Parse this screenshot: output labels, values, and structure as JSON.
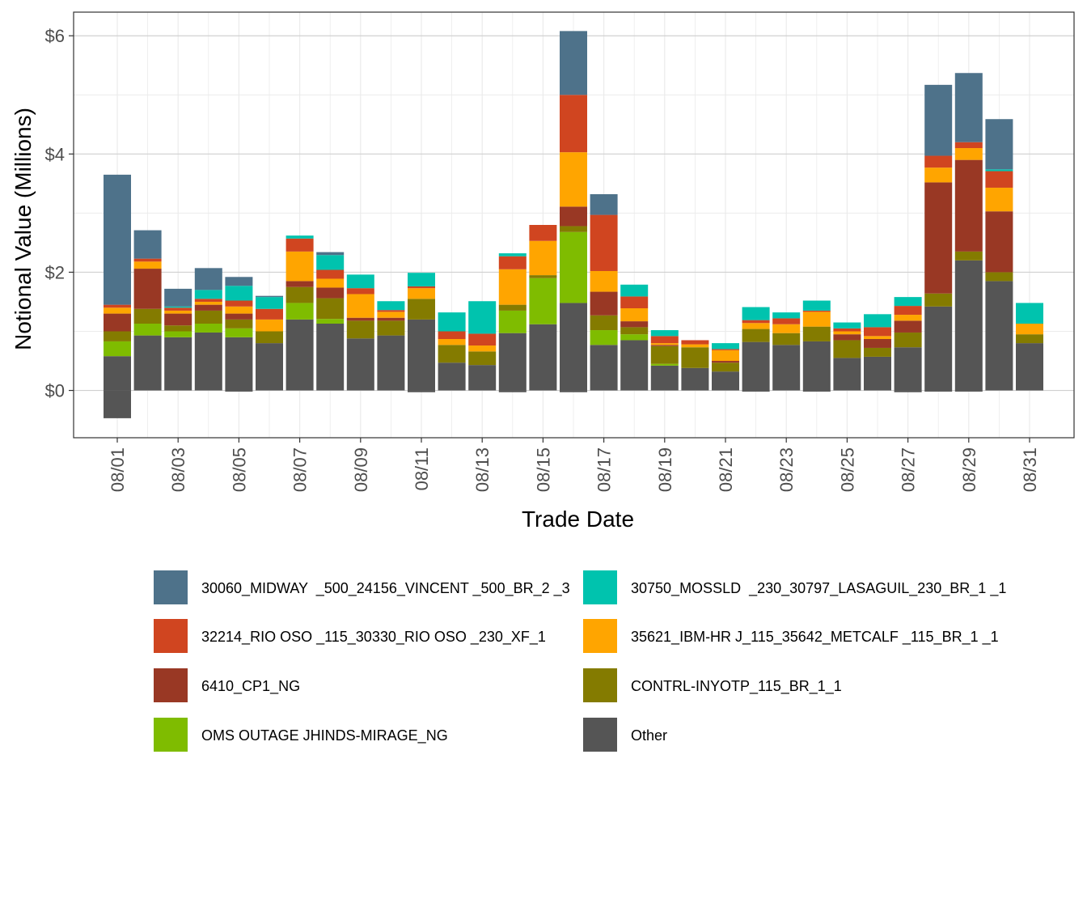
{
  "chart_data": {
    "type": "bar",
    "stacked": true,
    "xlabel": "Trade Date",
    "ylabel": "Notional Value (Millions)",
    "ylim": [
      -0.8,
      6.4
    ],
    "y_ticks": [
      0,
      2,
      4,
      6
    ],
    "y_tick_labels": [
      "$0",
      "$2",
      "$4",
      "$6"
    ],
    "x_tick_labels": [
      "08/01",
      "08/03",
      "08/05",
      "08/07",
      "08/09",
      "08/11",
      "08/13",
      "08/15",
      "08/17",
      "08/19",
      "08/21",
      "08/23",
      "08/25",
      "08/27",
      "08/29",
      "08/31"
    ],
    "grid": true,
    "legend_position": "bottom",
    "categories": [
      "08/01",
      "08/02",
      "08/03",
      "08/04",
      "08/05",
      "08/06",
      "08/07",
      "08/08",
      "08/09",
      "08/10",
      "08/11",
      "08/12",
      "08/13",
      "08/14",
      "08/15",
      "08/16",
      "08/17",
      "08/18",
      "08/19",
      "08/20",
      "08/21",
      "08/22",
      "08/23",
      "08/24",
      "08/25",
      "08/26",
      "08/27",
      "08/28",
      "08/29",
      "08/30",
      "08/31"
    ],
    "series": [
      {
        "name": "Other",
        "color": "#555555",
        "values": [
          0.58,
          0.93,
          0.9,
          0.98,
          0.9,
          0.8,
          1.2,
          1.13,
          0.88,
          0.93,
          1.2,
          0.47,
          0.43,
          0.97,
          1.12,
          1.48,
          0.77,
          0.85,
          0.42,
          0.38,
          0.32,
          0.82,
          0.77,
          0.83,
          0.55,
          0.57,
          0.73,
          1.42,
          2.2,
          1.85,
          0.8
        ],
        "negative": [
          -0.47,
          0,
          0,
          0,
          -0.02,
          0,
          0,
          0,
          0,
          0,
          -0.03,
          0,
          0,
          -0.03,
          0,
          -0.03,
          0,
          0,
          0,
          0,
          0,
          -0.02,
          0,
          -0.02,
          0,
          0,
          -0.03,
          -0.02,
          -0.02,
          0,
          0
        ]
      },
      {
        "name": "OMS OUTAGE JHINDS-MIRAGE_NG",
        "color": "#7fbc00",
        "values": [
          0.25,
          0.2,
          0.1,
          0.15,
          0.15,
          0,
          0.28,
          0.08,
          0,
          0,
          0,
          0,
          0,
          0.38,
          0.78,
          1.2,
          0.25,
          0.1,
          0.03,
          0,
          0,
          0,
          0,
          0,
          0,
          0,
          0,
          0,
          0,
          0,
          0
        ]
      },
      {
        "name": "CONTRL-INYOTP_115_BR_1_1",
        "color": "#847b00",
        "values": [
          0.17,
          0.25,
          0.1,
          0.22,
          0.15,
          0.2,
          0.27,
          0.35,
          0.3,
          0.25,
          0.35,
          0.3,
          0.23,
          0.1,
          0.05,
          0.1,
          0.25,
          0.12,
          0.3,
          0.35,
          0.15,
          0.22,
          0.2,
          0.25,
          0.3,
          0.15,
          0.25,
          0.22,
          0.15,
          0.15,
          0.15
        ]
      },
      {
        "name": "6410_CP1_NG",
        "color": "#993824",
        "values": [
          0.3,
          0.68,
          0.2,
          0.1,
          0.1,
          0,
          0.1,
          0.18,
          0.05,
          0.05,
          0,
          0,
          0,
          0,
          0,
          0.33,
          0.4,
          0.1,
          0.02,
          0,
          0.03,
          0,
          0,
          0,
          0.1,
          0.15,
          0.2,
          1.88,
          1.55,
          1.03,
          0
        ]
      },
      {
        "name": "35621_IBM-HR J_115_35642_METCALF _115_BR_1 _1",
        "color": "#ffa500",
        "values": [
          0.1,
          0.12,
          0.05,
          0.05,
          0.12,
          0.2,
          0.5,
          0.15,
          0.4,
          0.1,
          0.18,
          0.1,
          0.1,
          0.6,
          0.58,
          0.92,
          0.35,
          0.22,
          0.03,
          0.05,
          0.18,
          0.1,
          0.15,
          0.25,
          0.05,
          0.05,
          0.1,
          0.25,
          0.2,
          0.4,
          0.18
        ]
      },
      {
        "name": "32214_RIO OSO _115_30330_RIO OSO _230_XF_1",
        "color": "#d04520",
        "values": [
          0.05,
          0.05,
          0.05,
          0.05,
          0.1,
          0.18,
          0.22,
          0.15,
          0.1,
          0.03,
          0.03,
          0.13,
          0.2,
          0.22,
          0.27,
          0.97,
          0.95,
          0.2,
          0.12,
          0.07,
          0.02,
          0.05,
          0.1,
          0.02,
          0.05,
          0.15,
          0.15,
          0.2,
          0.1,
          0.28,
          0
        ]
      },
      {
        "name": "30750_MOSSLD  _230_30797_LASAGUIL_230_BR_1 _1",
        "color": "#00c3ae",
        "values": [
          0,
          0,
          0.02,
          0.15,
          0.25,
          0.2,
          0.05,
          0.25,
          0.23,
          0.15,
          0.23,
          0.32,
          0.55,
          0.05,
          0,
          0,
          0,
          0.2,
          0.1,
          0,
          0.1,
          0.22,
          0.1,
          0.17,
          0.1,
          0.22,
          0.15,
          0,
          0,
          0.03,
          0.35
        ]
      },
      {
        "name": "30060_MIDWAY  _500_24156_VINCENT _500_BR_2 _3",
        "color": "#4e728a",
        "values": [
          2.2,
          0.48,
          0.3,
          0.37,
          0.15,
          0.02,
          0,
          0.05,
          0,
          0,
          0,
          0,
          0,
          0,
          0,
          1.08,
          0.35,
          0,
          0,
          0,
          0,
          0,
          0,
          0,
          0,
          0,
          0,
          1.2,
          1.17,
          0.85,
          0
        ]
      }
    ],
    "legend_order": [
      "30060_MIDWAY  _500_24156_VINCENT _500_BR_2 _3",
      "30750_MOSSLD  _230_30797_LASAGUIL_230_BR_1 _1",
      "32214_RIO OSO _115_30330_RIO OSO _230_XF_1",
      "35621_IBM-HR J_115_35642_METCALF _115_BR_1 _1",
      "6410_CP1_NG",
      "CONTRL-INYOTP_115_BR_1_1",
      "OMS OUTAGE JHINDS-MIRAGE_NG",
      "Other"
    ]
  }
}
